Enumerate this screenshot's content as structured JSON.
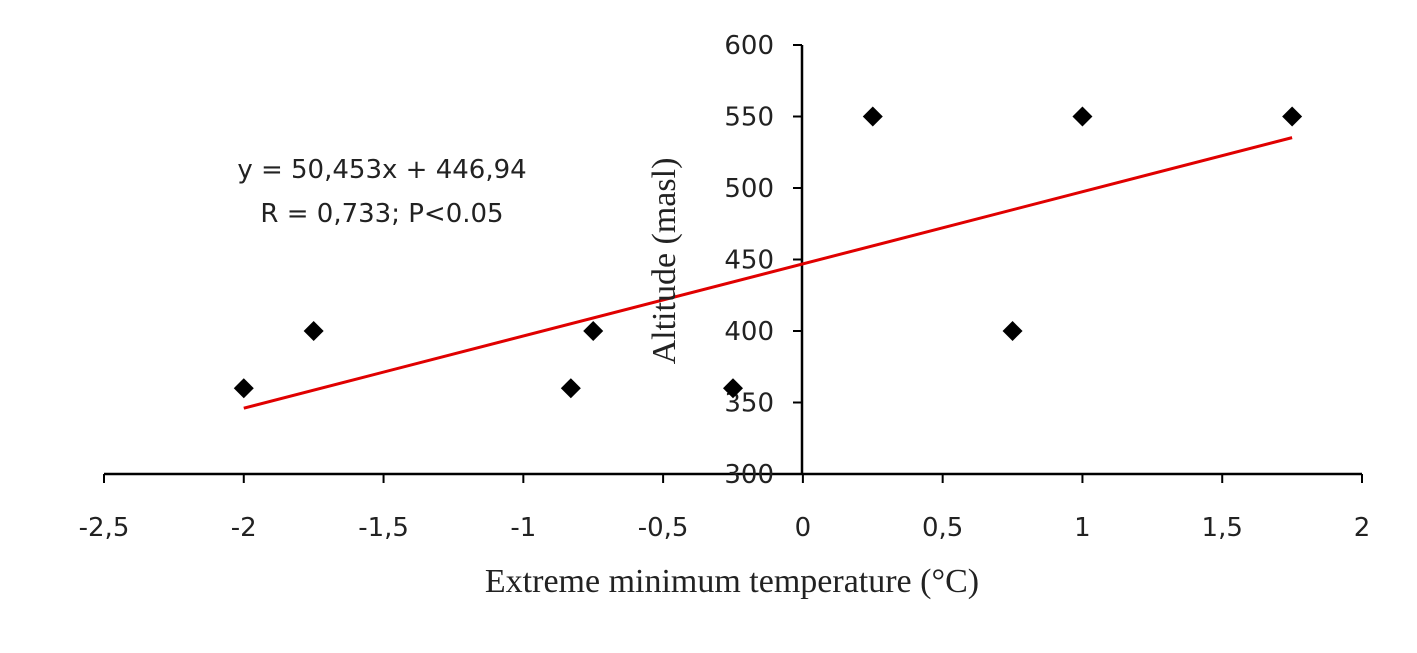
{
  "chart_data": {
    "type": "scatter",
    "xlabel": "Extreme minimum temperature (°C)",
    "ylabel": "Altitude (masl)",
    "xlim": [
      -2.5,
      2
    ],
    "ylim": [
      300,
      600
    ],
    "x_ticks": [
      "-2,5",
      "-2",
      "-1,5",
      "-1",
      "-0,5",
      "0",
      "0,5",
      "1",
      "1,5",
      "2"
    ],
    "x_tick_values": [
      -2.5,
      -2,
      -1.5,
      -1,
      -0.5,
      0,
      0.5,
      1,
      1.5,
      2
    ],
    "y_ticks": [
      "300",
      "350",
      "400",
      "450",
      "500",
      "550",
      "600"
    ],
    "y_tick_values": [
      300,
      350,
      400,
      450,
      500,
      550,
      600
    ],
    "grid": false,
    "marker": "diamond",
    "marker_color": "#000000",
    "series": [
      {
        "x": [
          -2,
          -1.75,
          -0.83,
          -0.75,
          -0.25,
          0.25,
          0.75,
          1,
          1.75
        ],
        "y": [
          360,
          400,
          360,
          400,
          360,
          550,
          400,
          550,
          550
        ]
      }
    ],
    "trendline": {
      "slope": 50.453,
      "intercept": 446.94,
      "x_range": [
        -2,
        1.75
      ],
      "color": "#e00000"
    },
    "annotations": [
      "y = 50,453x + 446,94",
      "R = 0,733; P<0.05"
    ]
  }
}
